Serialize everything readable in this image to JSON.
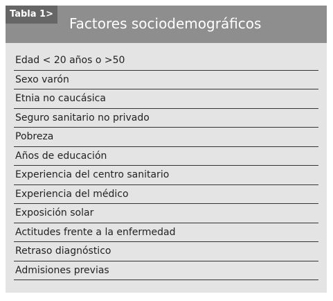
{
  "table": {
    "label": "Tabla 1>",
    "title": "Factores sociodemográficos",
    "rows": [
      "Edad < 20 años o >50",
      "Sexo varón",
      "Etnia no caucásica",
      "Seguro sanitario no privado",
      "Pobreza",
      "Años de educación",
      "Experiencia del centro sanitario",
      "Experiencia del médico",
      "Exposición solar",
      "Actitudes frente a la enfermedad",
      "Retraso diagnóstico",
      "Admisiones previas"
    ]
  }
}
